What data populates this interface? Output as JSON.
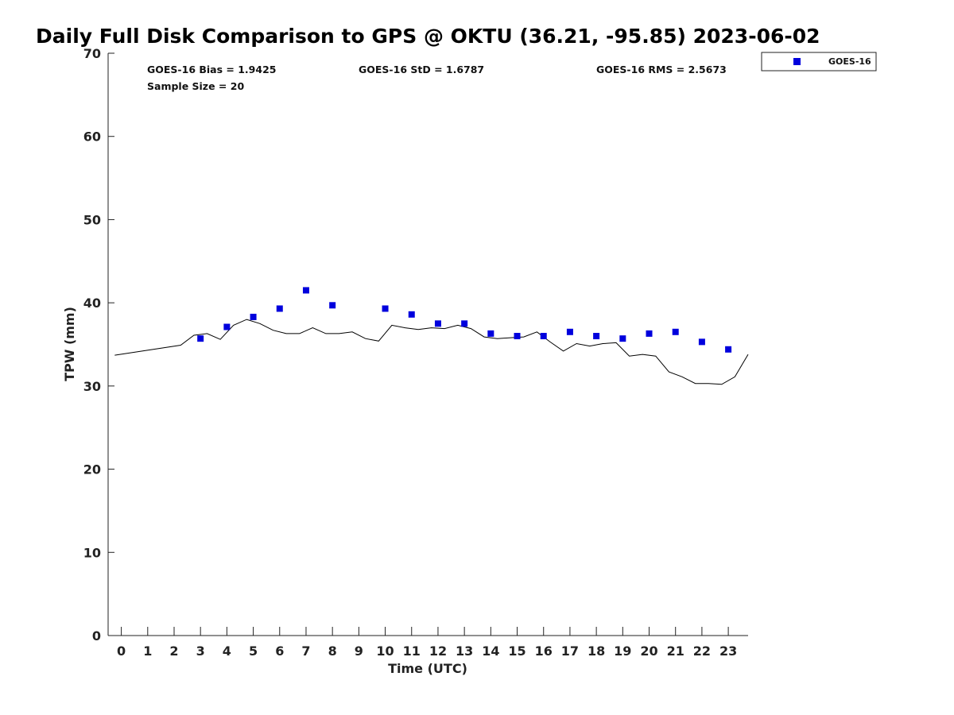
{
  "chart_data": {
    "type": "scatter",
    "title": "Daily Full Disk Comparison to GPS @ OKTU (36.21, -95.85) 2023-06-02",
    "xlabel": "Time (UTC)",
    "ylabel": "TPW (mm)",
    "xlim": [
      -0.5,
      23.75
    ],
    "ylim": [
      0,
      70
    ],
    "x_ticks": [
      0,
      1,
      2,
      3,
      4,
      5,
      6,
      7,
      8,
      9,
      10,
      11,
      12,
      13,
      14,
      15,
      16,
      17,
      18,
      19,
      20,
      21,
      22,
      23
    ],
    "y_ticks": [
      0,
      10,
      20,
      30,
      40,
      50,
      60,
      70
    ],
    "grid": false,
    "legend_position": "top-right",
    "stats": {
      "bias": "GOES-16 Bias = 1.9425",
      "std": "GOES-16 StD = 1.6787",
      "rms": "GOES-16 RMS = 2.5673",
      "sample": "Sample Size = 20"
    },
    "series": [
      {
        "name": "GOES-16",
        "kind": "scatter",
        "marker": "square",
        "color": "#0000dd",
        "x": [
          3,
          4,
          5,
          6,
          7,
          8,
          10,
          11,
          12,
          13,
          14,
          15,
          16,
          17,
          18,
          19,
          20,
          21,
          22,
          23
        ],
        "y": [
          35.7,
          37.1,
          38.3,
          39.3,
          41.5,
          39.7,
          39.3,
          38.6,
          37.5,
          37.5,
          36.3,
          36.0,
          36.0,
          36.5,
          36.0,
          35.7,
          36.3,
          36.5,
          35.3,
          34.4
        ]
      },
      {
        "kind": "line",
        "color": "#000000",
        "x": [
          -0.25,
          2.25,
          2.75,
          3.25,
          3.75,
          4.25,
          4.75,
          5.25,
          5.75,
          6.25,
          6.75,
          7.25,
          7.75,
          8.25,
          8.75,
          9.25,
          9.75,
          10.25,
          10.75,
          11.25,
          11.75,
          12.25,
          12.75,
          13.25,
          13.75,
          14.25,
          14.75,
          15.25,
          15.75,
          16.25,
          16.75,
          17.25,
          17.75,
          18.25,
          18.75,
          19.25,
          19.75,
          20.25,
          20.75,
          21.25,
          21.75,
          22.25,
          22.75,
          23.25,
          23.75
        ],
        "y": [
          33.7,
          34.9,
          36.1,
          36.3,
          35.6,
          37.3,
          38.0,
          37.5,
          36.7,
          36.3,
          36.3,
          37.0,
          36.3,
          36.3,
          36.5,
          35.7,
          35.4,
          37.3,
          37.0,
          36.8,
          37.0,
          36.9,
          37.3,
          36.9,
          35.9,
          35.7,
          35.8,
          35.9,
          36.5,
          35.3,
          34.2,
          35.1,
          34.8,
          35.1,
          35.2,
          33.6,
          33.8,
          33.6,
          31.7,
          31.1,
          30.3,
          30.3,
          30.2,
          31.1,
          33.8
        ]
      }
    ]
  }
}
